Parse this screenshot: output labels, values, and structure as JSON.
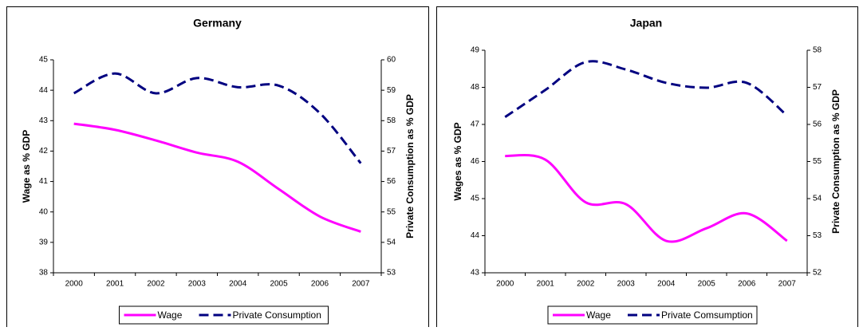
{
  "chart_data": [
    {
      "type": "line",
      "title": "Germany",
      "categories": [
        "2000",
        "2001",
        "2002",
        "2003",
        "2004",
        "2005",
        "2006",
        "2007"
      ],
      "y_label": "Wage as % GDP",
      "y2_label": "Private Consumption as % GDP",
      "ylim": [
        38,
        45
      ],
      "yticks": [
        38,
        39,
        40,
        41,
        42,
        43,
        44,
        45
      ],
      "y2lim": [
        53,
        60
      ],
      "y2ticks": [
        53,
        54,
        55,
        56,
        57,
        58,
        59,
        60
      ],
      "series": [
        {
          "name": "Wage",
          "color": "#ff00ff",
          "dash": "solid",
          "values": [
            42.9,
            42.7,
            42.35,
            41.95,
            41.65,
            40.75,
            39.85,
            39.35
          ]
        },
        {
          "name": "Private Consumption",
          "color": "#000080",
          "dash": "dashed",
          "axis": "y2",
          "values": [
            58.9,
            59.55,
            58.9,
            59.4,
            59.1,
            59.15,
            58.25,
            56.6
          ]
        }
      ]
    },
    {
      "type": "line",
      "title": "Japan",
      "categories": [
        "2000",
        "2001",
        "2002",
        "2003",
        "2004",
        "2005",
        "2006",
        "2007"
      ],
      "y_label": "Wages as % GDP",
      "y2_label": "Private Consumption as % GDP",
      "ylim": [
        43,
        49
      ],
      "yticks": [
        43,
        44,
        45,
        46,
        47,
        48,
        49
      ],
      "y2lim": [
        52,
        58
      ],
      "y2ticks": [
        52,
        53,
        54,
        55,
        56,
        57,
        58
      ],
      "series": [
        {
          "name": "Wage",
          "color": "#ff00ff",
          "dash": "solid",
          "values": [
            46.15,
            46.05,
            44.9,
            44.85,
            43.86,
            44.2,
            44.6,
            43.86
          ]
        },
        {
          "name": "Private Comsumption",
          "color": "#000080",
          "dash": "dashed",
          "axis": "y2",
          "values": [
            56.2,
            56.93,
            57.68,
            57.48,
            57.12,
            56.99,
            57.12,
            56.24
          ]
        }
      ]
    }
  ]
}
